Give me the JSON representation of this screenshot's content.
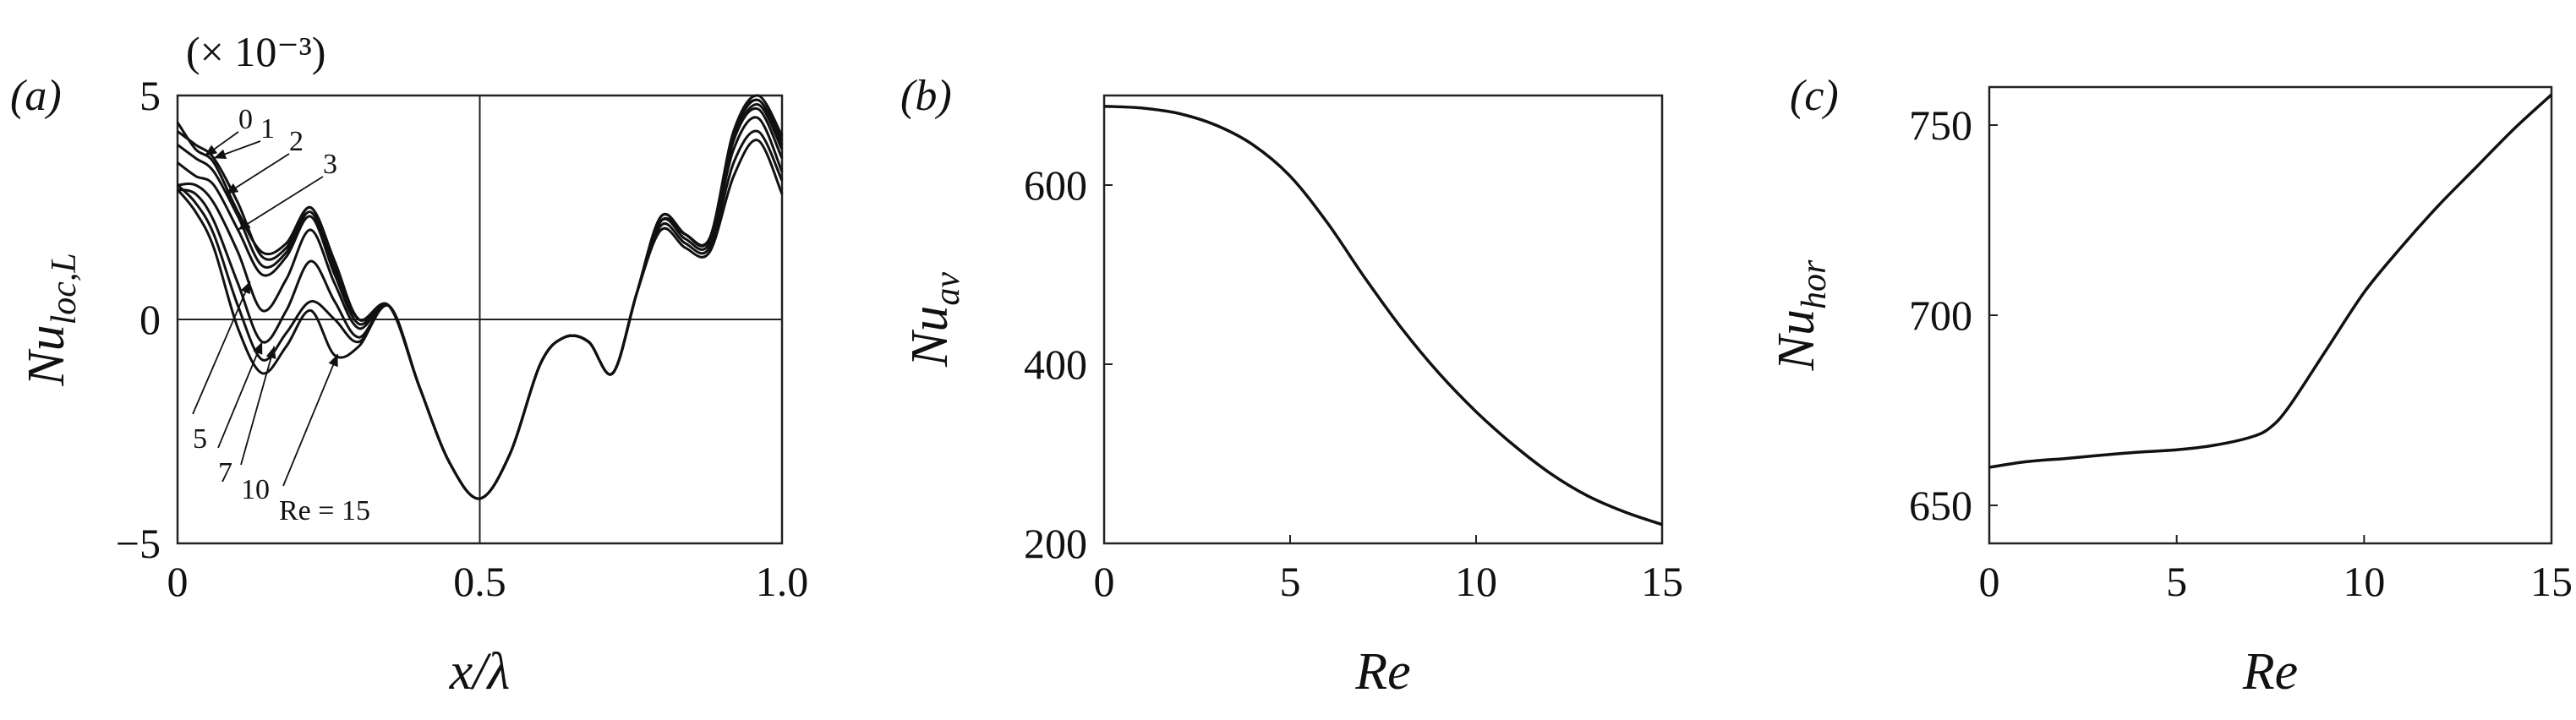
{
  "chart_data": [
    {
      "panel_label": "(a)",
      "type": "line",
      "xlabel": "x/λ",
      "ylabel": "Nu_loc,L",
      "ylabel_main": "Nu",
      "ylabel_sub": "loc,L",
      "multiplier": "(× 10⁻³)",
      "xlim": [
        0,
        1
      ],
      "ylim": [
        -5,
        5
      ],
      "xticks": [
        0,
        0.5,
        1.0
      ],
      "xtick_labels": [
        "0",
        "0.5",
        "1.0"
      ],
      "yticks": [
        -5,
        0,
        5
      ],
      "ytick_labels": [
        "−5",
        "0",
        "5"
      ],
      "reference_lines": {
        "y": 0,
        "x": 0.5
      },
      "series": [
        {
          "name": "0",
          "x": [
            0,
            0.03,
            0.06,
            0.1,
            0.14,
            0.18,
            0.22,
            0.26,
            0.3,
            0.35,
            0.4,
            0.45,
            0.5,
            0.55,
            0.6,
            0.64,
            0.68,
            0.72,
            0.76,
            0.8,
            0.84,
            0.88,
            0.92,
            0.96,
            1.0
          ],
          "y": [
            4.4,
            3.8,
            3.5,
            2.4,
            1.5,
            1.7,
            2.5,
            1.3,
            0.0,
            0.3,
            -1.5,
            -3.2,
            -4.0,
            -3.0,
            -1.0,
            -0.4,
            -0.5,
            -1.2,
            0.6,
            2.3,
            1.9,
            1.8,
            4.0,
            4.8,
            3.8
          ]
        },
        {
          "name": "1",
          "x": [
            0,
            0.03,
            0.06,
            0.1,
            0.14,
            0.18,
            0.22,
            0.26,
            0.3,
            0.35,
            0.4,
            0.45,
            0.5,
            0.55,
            0.6,
            0.64,
            0.68,
            0.72,
            0.76,
            0.8,
            0.84,
            0.88,
            0.92,
            0.96,
            1.0
          ],
          "y": [
            4.2,
            3.9,
            3.6,
            2.6,
            1.4,
            1.6,
            2.5,
            1.2,
            0.0,
            0.3,
            -1.5,
            -3.2,
            -4.0,
            -3.0,
            -1.0,
            -0.4,
            -0.5,
            -1.2,
            0.6,
            2.3,
            1.9,
            1.8,
            4.1,
            4.9,
            3.9
          ]
        },
        {
          "name": "2",
          "x": [
            0,
            0.03,
            0.06,
            0.1,
            0.14,
            0.18,
            0.22,
            0.26,
            0.3,
            0.35,
            0.4,
            0.45,
            0.5,
            0.55,
            0.6,
            0.64,
            0.68,
            0.72,
            0.76,
            0.8,
            0.84,
            0.88,
            0.92,
            0.96,
            1.0
          ],
          "y": [
            3.9,
            3.6,
            3.3,
            2.3,
            1.2,
            1.5,
            2.4,
            1.1,
            0.0,
            0.3,
            -1.5,
            -3.2,
            -4.0,
            -3.0,
            -1.0,
            -0.4,
            -0.5,
            -1.2,
            0.6,
            2.3,
            1.9,
            1.8,
            4.2,
            4.9,
            4.0
          ]
        },
        {
          "name": "3",
          "x": [
            0,
            0.03,
            0.06,
            0.1,
            0.14,
            0.18,
            0.22,
            0.26,
            0.3,
            0.35,
            0.4,
            0.45,
            0.5,
            0.55,
            0.6,
            0.64,
            0.68,
            0.72,
            0.76,
            0.8,
            0.84,
            0.88,
            0.92,
            0.96,
            1.0
          ],
          "y": [
            3.5,
            3.2,
            3.0,
            2.0,
            1.0,
            1.4,
            2.3,
            1.0,
            -0.1,
            0.3,
            -1.5,
            -3.2,
            -4.0,
            -3.0,
            -1.0,
            -0.4,
            -0.5,
            -1.2,
            0.6,
            2.3,
            1.9,
            1.8,
            4.2,
            5.0,
            4.1
          ]
        },
        {
          "name": "5",
          "x": [
            0,
            0.03,
            0.06,
            0.1,
            0.14,
            0.18,
            0.22,
            0.26,
            0.3,
            0.35,
            0.4,
            0.45,
            0.5,
            0.55,
            0.6,
            0.64,
            0.68,
            0.72,
            0.76,
            0.8,
            0.84,
            0.88,
            0.92,
            0.96,
            1.0
          ],
          "y": [
            3.0,
            3.0,
            2.6,
            1.5,
            0.2,
            0.9,
            2.0,
            0.8,
            -0.2,
            0.3,
            -1.5,
            -3.2,
            -4.0,
            -3.0,
            -1.0,
            -0.4,
            -0.5,
            -1.2,
            0.6,
            2.2,
            1.9,
            1.8,
            4.0,
            4.7,
            3.6
          ]
        },
        {
          "name": "7",
          "x": [
            0,
            0.03,
            0.06,
            0.1,
            0.14,
            0.18,
            0.22,
            0.26,
            0.3,
            0.35,
            0.4,
            0.45,
            0.5,
            0.55,
            0.6,
            0.64,
            0.68,
            0.72,
            0.76,
            0.8,
            0.84,
            0.88,
            0.92,
            0.96,
            1.0
          ],
          "y": [
            2.9,
            2.8,
            2.2,
            0.8,
            -0.5,
            0.2,
            1.3,
            0.4,
            -0.4,
            0.3,
            -1.5,
            -3.2,
            -4.0,
            -3.0,
            -1.0,
            -0.4,
            -0.5,
            -1.2,
            0.6,
            2.2,
            1.8,
            1.7,
            3.8,
            4.5,
            3.3
          ]
        },
        {
          "name": "10",
          "x": [
            0,
            0.03,
            0.06,
            0.1,
            0.14,
            0.18,
            0.22,
            0.26,
            0.3,
            0.35,
            0.4,
            0.45,
            0.5,
            0.55,
            0.6,
            0.64,
            0.68,
            0.72,
            0.76,
            0.8,
            0.84,
            0.88,
            0.92,
            0.96,
            1.0
          ],
          "y": [
            3.0,
            2.6,
            1.9,
            0.3,
            -0.9,
            -0.3,
            0.4,
            0.0,
            -0.5,
            0.3,
            -1.5,
            -3.2,
            -4.0,
            -3.0,
            -1.0,
            -0.4,
            -0.5,
            -1.2,
            0.6,
            2.1,
            1.7,
            1.6,
            3.5,
            4.2,
            3.1
          ]
        },
        {
          "name": "Re = 15",
          "x": [
            0,
            0.03,
            0.06,
            0.1,
            0.14,
            0.18,
            0.22,
            0.26,
            0.3,
            0.35,
            0.4,
            0.45,
            0.5,
            0.55,
            0.6,
            0.64,
            0.68,
            0.72,
            0.76,
            0.8,
            0.84,
            0.88,
            0.92,
            0.96,
            1.0
          ],
          "y": [
            2.9,
            2.4,
            1.6,
            -0.2,
            -1.2,
            -0.6,
            0.2,
            -0.8,
            -0.6,
            0.3,
            -1.5,
            -3.2,
            -4.0,
            -3.0,
            -1.0,
            -0.4,
            -0.5,
            -1.2,
            0.6,
            2.0,
            1.6,
            1.5,
            3.2,
            4.0,
            2.8
          ]
        }
      ],
      "annotations": [
        "0",
        "1",
        "2",
        "3",
        "5",
        "7",
        "10",
        "Re = 15"
      ]
    },
    {
      "panel_label": "(b)",
      "type": "line",
      "xlabel": "Re",
      "ylabel": "Nu_av",
      "ylabel_main": "Nu",
      "ylabel_sub": "av",
      "xlim": [
        0,
        15
      ],
      "ylim": [
        200,
        700
      ],
      "xticks": [
        0,
        5,
        10,
        15
      ],
      "xtick_labels": [
        "0",
        "5",
        "10",
        "15"
      ],
      "yticks": [
        200,
        400,
        600
      ],
      "ytick_labels": [
        "200",
        "400",
        "600"
      ],
      "series": [
        {
          "x": [
            0,
            1,
            2,
            3,
            4,
            5,
            6,
            7,
            8,
            9,
            10,
            11,
            12,
            13,
            14,
            15
          ],
          "y": [
            688,
            686,
            680,
            667,
            645,
            610,
            558,
            497,
            440,
            390,
            347,
            310,
            278,
            253,
            235,
            221
          ]
        }
      ]
    },
    {
      "panel_label": "(c)",
      "type": "line",
      "xlabel": "Re",
      "ylabel": "Nu_hor",
      "ylabel_main": "Nu",
      "ylabel_sub": "hor",
      "xlim": [
        0,
        15
      ],
      "ylim": [
        640,
        760
      ],
      "xticks": [
        0,
        5,
        10,
        15
      ],
      "xtick_labels": [
        "0",
        "5",
        "10",
        "15"
      ],
      "yticks": [
        650,
        700,
        750
      ],
      "ytick_labels": [
        "650",
        "700",
        "750"
      ],
      "series": [
        {
          "x": [
            0,
            1,
            2,
            3,
            4,
            5,
            6,
            7,
            7.5,
            8,
            9,
            10,
            11,
            12,
            13,
            14,
            15
          ],
          "y": [
            660,
            661.5,
            662.3,
            663.2,
            664,
            664.6,
            665.8,
            668,
            670.5,
            676,
            691,
            706,
            718,
            729,
            739,
            749,
            758
          ]
        }
      ]
    }
  ]
}
